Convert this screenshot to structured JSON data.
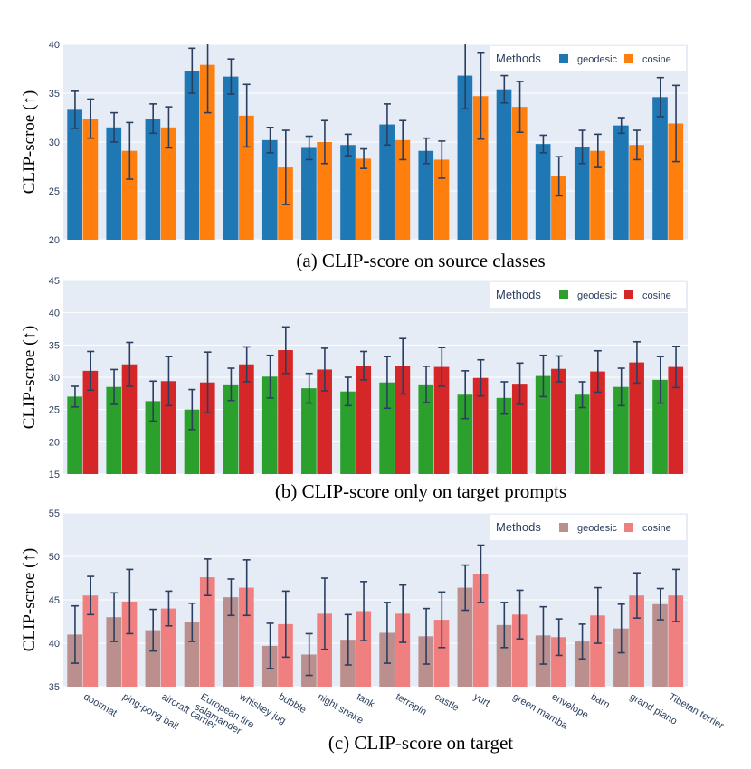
{
  "chart_data": [
    {
      "type": "bar",
      "title": "(a) CLIP-score on source classes",
      "ylabel": "CLIP-scroe (↑)",
      "xlabel": "",
      "ylim": [
        20,
        40
      ],
      "yticks": [
        20,
        25,
        30,
        35,
        40
      ],
      "legend_title": "Methods",
      "legend_position": "top-right",
      "categories": [
        "doormat",
        "ping-pong ball",
        "aircraft carrier",
        "European fire salamander",
        "whiskey jug",
        "bubble",
        "night snake",
        "tank",
        "terrapin",
        "castle",
        "yurt",
        "green mamba",
        "envelope",
        "barn",
        "grand piano",
        "Tibetan terrier"
      ],
      "series": [
        {
          "name": "geodesic",
          "color": "#1f77b4",
          "values": [
            33.3,
            31.5,
            32.4,
            37.3,
            36.7,
            30.2,
            29.4,
            29.7,
            31.8,
            29.1,
            36.8,
            35.4,
            29.8,
            29.5,
            31.7,
            34.6
          ],
          "error": [
            1.9,
            1.5,
            1.5,
            2.3,
            1.8,
            1.3,
            1.2,
            1.1,
            2.1,
            1.3,
            3.4,
            1.4,
            0.9,
            1.7,
            0.8,
            2.0
          ]
        },
        {
          "name": "cosine",
          "color": "#ff7f0e",
          "values": [
            32.4,
            29.1,
            31.5,
            37.9,
            32.7,
            27.4,
            30.0,
            28.3,
            30.2,
            28.2,
            34.7,
            33.6,
            26.5,
            29.1,
            29.7,
            31.9
          ],
          "error": [
            2.0,
            2.9,
            2.1,
            4.9,
            3.2,
            3.8,
            2.2,
            1.0,
            2.0,
            1.9,
            4.4,
            2.6,
            2.0,
            1.7,
            1.5,
            3.9
          ]
        }
      ]
    },
    {
      "type": "bar",
      "title": "(b) CLIP-score only on target prompts",
      "ylabel": "CLIP-scroe (↑)",
      "xlabel": "",
      "ylim": [
        15,
        45
      ],
      "yticks": [
        15,
        20,
        25,
        30,
        35,
        40,
        45
      ],
      "legend_title": "Methods",
      "legend_position": "top-right",
      "categories": [
        "doormat",
        "ping-pong ball",
        "aircraft carrier",
        "European fire salamander",
        "whiskey jug",
        "bubble",
        "night snake",
        "tank",
        "terrapin",
        "castle",
        "yurt",
        "green mamba",
        "envelope",
        "barn",
        "grand piano",
        "Tibetan terrier"
      ],
      "series": [
        {
          "name": "geodesic",
          "color": "#2ca02c",
          "values": [
            27.0,
            28.5,
            26.3,
            25.0,
            28.9,
            30.1,
            28.3,
            27.8,
            29.2,
            28.9,
            27.3,
            26.8,
            30.2,
            27.3,
            28.5,
            29.6
          ],
          "error": [
            1.6,
            2.7,
            3.1,
            3.1,
            2.5,
            3.3,
            2.3,
            2.2,
            4.0,
            2.8,
            3.7,
            2.5,
            3.2,
            2.0,
            2.9,
            3.6
          ]
        },
        {
          "name": "cosine",
          "color": "#d62728",
          "values": [
            31.0,
            32.0,
            29.4,
            29.2,
            32.0,
            34.2,
            31.2,
            31.8,
            31.7,
            31.6,
            29.9,
            29.0,
            31.3,
            30.9,
            32.3,
            31.6
          ],
          "error": [
            3.0,
            3.4,
            3.8,
            4.7,
            2.7,
            3.6,
            3.3,
            2.2,
            4.3,
            3.0,
            2.8,
            3.2,
            2.0,
            3.2,
            3.2,
            3.2
          ]
        }
      ]
    },
    {
      "type": "bar",
      "title": "(c) CLIP-score on target",
      "ylabel": "CLIP-scroe (↑)",
      "xlabel": "",
      "ylim": [
        35,
        55
      ],
      "yticks": [
        35,
        40,
        45,
        50,
        55
      ],
      "legend_title": "Methods",
      "legend_position": "top-right",
      "categories": [
        "doormat",
        "ping-pong ball",
        "aircraft carrier",
        "European fire salamander",
        "whiskey jug",
        "bubble",
        "night snake",
        "tank",
        "terrapin",
        "castle",
        "yurt",
        "green mamba",
        "envelope",
        "barn",
        "grand piano",
        "Tibetan terrier"
      ],
      "tick_labels": [
        "doormat",
        "ping-pong ball",
        "aircraft carrier",
        "European fire\nsalamander",
        "whiskey jug",
        "bubble",
        "night snake",
        "tank",
        "terrapin",
        "castle",
        "yurt",
        "green mamba",
        "envelope",
        "barn",
        "grand piano",
        "Tibetan terrier"
      ],
      "series": [
        {
          "name": "geodesic",
          "color": "#bc8f8f",
          "values": [
            41.0,
            43.0,
            41.5,
            42.4,
            45.3,
            39.7,
            38.7,
            40.4,
            41.2,
            40.8,
            46.4,
            42.1,
            40.9,
            40.2,
            41.7,
            44.5
          ],
          "error": [
            3.3,
            2.8,
            2.4,
            2.2,
            2.1,
            2.6,
            2.4,
            2.9,
            3.5,
            3.2,
            2.6,
            2.6,
            3.3,
            2.0,
            2.8,
            1.8
          ]
        },
        {
          "name": "cosine",
          "color": "#f08080",
          "values": [
            45.5,
            44.8,
            44.0,
            47.6,
            46.4,
            42.2,
            43.4,
            43.7,
            43.4,
            42.7,
            48.0,
            43.3,
            40.7,
            43.2,
            45.5,
            45.5
          ],
          "error": [
            2.2,
            3.7,
            2.0,
            2.1,
            3.2,
            3.8,
            4.1,
            3.4,
            3.3,
            3.2,
            3.3,
            2.8,
            2.1,
            3.2,
            2.6,
            3.0
          ]
        }
      ]
    }
  ]
}
